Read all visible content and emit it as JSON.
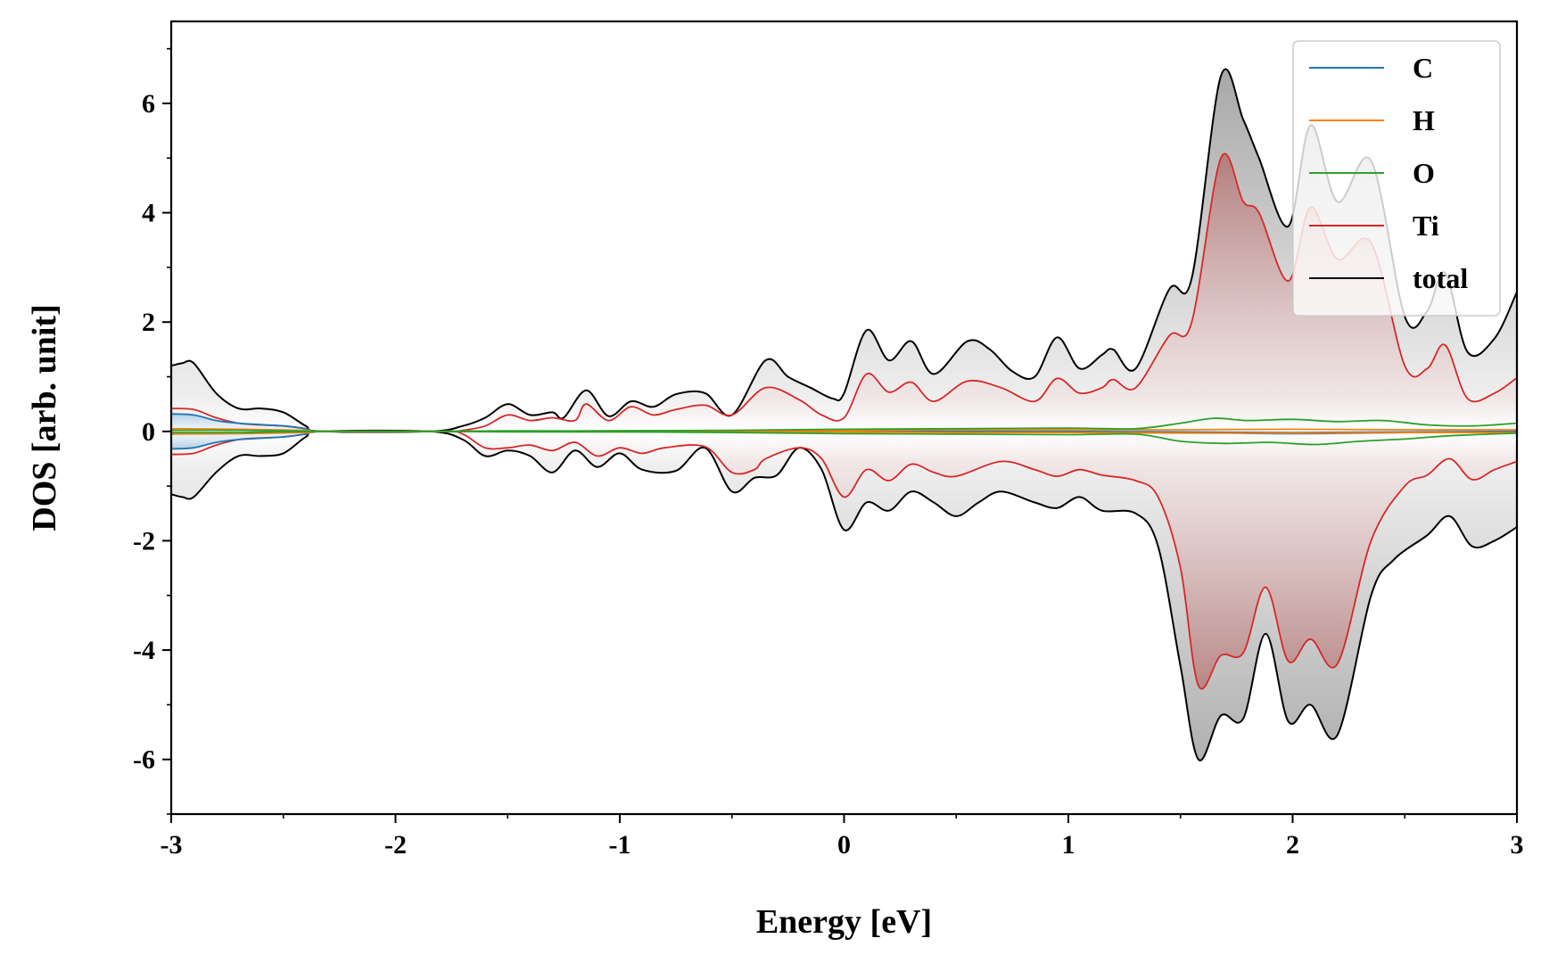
{
  "chart_data": {
    "type": "line",
    "title": "",
    "xlabel": "Energy [eV]",
    "ylabel": "DOS [arb. unit]",
    "xlim": [
      -3,
      3
    ],
    "ylim": [
      -7,
      7.5
    ],
    "xticks": [
      -3,
      -2,
      -1,
      0,
      1,
      2,
      3
    ],
    "xtick_labels": [
      "-3",
      "-2",
      "-1",
      "0",
      "1",
      "2",
      "3"
    ],
    "yticks": [
      -6,
      -4,
      -2,
      0,
      2,
      4,
      6
    ],
    "ytick_labels": [
      "-6",
      "-4",
      "-2",
      "0",
      "2",
      "4",
      "6"
    ],
    "grid": false,
    "legend_position": "top-right",
    "colors": {
      "C": "#1f77b4",
      "H": "#ff7f0e",
      "O": "#2ca02c",
      "Ti": "#d62728",
      "total": "#000000"
    },
    "series": [
      {
        "name": "C",
        "up": [
          [
            -3.0,
            0.32
          ],
          [
            -2.9,
            0.3
          ],
          [
            -2.8,
            0.2
          ],
          [
            -2.7,
            0.15
          ],
          [
            -2.5,
            0.1
          ],
          [
            -2.4,
            0.05
          ],
          [
            -2.33,
            0.0
          ],
          [
            -1.8,
            0.0
          ],
          [
            -1.0,
            0.0
          ],
          [
            0.0,
            0.0
          ],
          [
            1.0,
            -0.01
          ],
          [
            1.5,
            -0.02
          ],
          [
            2.0,
            -0.04
          ],
          [
            2.5,
            -0.02
          ],
          [
            3.0,
            0.0
          ]
        ],
        "down": [
          [
            -3.0,
            -0.32
          ],
          [
            -2.9,
            -0.3
          ],
          [
            -2.8,
            -0.2
          ],
          [
            -2.7,
            -0.15
          ],
          [
            -2.5,
            -0.1
          ],
          [
            -2.4,
            -0.05
          ],
          [
            -2.33,
            0.0
          ],
          [
            -1.8,
            0.0
          ],
          [
            -1.0,
            0.0
          ],
          [
            0.0,
            0.0
          ],
          [
            1.0,
            0.0
          ],
          [
            1.5,
            -0.01
          ],
          [
            2.0,
            -0.02
          ],
          [
            2.5,
            -0.01
          ],
          [
            3.0,
            0.0
          ]
        ]
      },
      {
        "name": "H",
        "up": [
          [
            -3.0,
            0.05
          ],
          [
            -2.7,
            0.04
          ],
          [
            -2.4,
            0.02
          ],
          [
            -2.33,
            0.0
          ],
          [
            -1.8,
            0.0
          ],
          [
            -1.0,
            0.01
          ],
          [
            0.0,
            0.02
          ],
          [
            0.5,
            0.03
          ],
          [
            1.0,
            0.03
          ],
          [
            1.5,
            0.03
          ],
          [
            2.0,
            0.04
          ],
          [
            2.5,
            0.03
          ],
          [
            3.0,
            0.03
          ]
        ],
        "down": [
          [
            -3.0,
            -0.05
          ],
          [
            -2.7,
            -0.04
          ],
          [
            -2.4,
            -0.02
          ],
          [
            -2.33,
            0.0
          ],
          [
            -1.8,
            0.0
          ],
          [
            -1.0,
            -0.01
          ],
          [
            0.0,
            -0.01
          ],
          [
            0.5,
            -0.02
          ],
          [
            1.0,
            -0.02
          ],
          [
            1.5,
            -0.03
          ],
          [
            2.0,
            -0.03
          ],
          [
            2.5,
            -0.02
          ],
          [
            3.0,
            -0.02
          ]
        ]
      },
      {
        "name": "O",
        "up": [
          [
            -3.0,
            0.02
          ],
          [
            -2.7,
            0.02
          ],
          [
            -2.33,
            0.0
          ],
          [
            -1.8,
            0.0
          ],
          [
            -1.5,
            0.01
          ],
          [
            -1.0,
            0.01
          ],
          [
            -0.5,
            0.02
          ],
          [
            0.0,
            0.04
          ],
          [
            0.5,
            0.05
          ],
          [
            1.0,
            0.06
          ],
          [
            1.3,
            0.05
          ],
          [
            1.5,
            0.15
          ],
          [
            1.65,
            0.24
          ],
          [
            1.8,
            0.2
          ],
          [
            2.0,
            0.22
          ],
          [
            2.2,
            0.18
          ],
          [
            2.4,
            0.2
          ],
          [
            2.6,
            0.12
          ],
          [
            2.8,
            0.1
          ],
          [
            3.0,
            0.15
          ]
        ],
        "down": [
          [
            -3.0,
            -0.02
          ],
          [
            -2.7,
            -0.02
          ],
          [
            -2.33,
            0.0
          ],
          [
            -1.8,
            0.0
          ],
          [
            -1.5,
            -0.01
          ],
          [
            -1.0,
            -0.01
          ],
          [
            -0.5,
            -0.02
          ],
          [
            0.0,
            -0.04
          ],
          [
            0.5,
            -0.05
          ],
          [
            1.0,
            -0.06
          ],
          [
            1.3,
            -0.05
          ],
          [
            1.5,
            -0.18
          ],
          [
            1.7,
            -0.22
          ],
          [
            1.9,
            -0.2
          ],
          [
            2.1,
            -0.24
          ],
          [
            2.3,
            -0.18
          ],
          [
            2.5,
            -0.14
          ],
          [
            2.7,
            -0.08
          ],
          [
            3.0,
            -0.03
          ]
        ]
      },
      {
        "name": "Ti",
        "up": [
          [
            -3.0,
            0.42
          ],
          [
            -2.9,
            0.4
          ],
          [
            -2.8,
            0.25
          ],
          [
            -2.7,
            0.15
          ],
          [
            -2.6,
            0.12
          ],
          [
            -2.5,
            0.1
          ],
          [
            -2.4,
            0.05
          ],
          [
            -2.33,
            0.0
          ],
          [
            -1.8,
            0.0
          ],
          [
            -1.7,
            0.02
          ],
          [
            -1.6,
            0.1
          ],
          [
            -1.5,
            0.3
          ],
          [
            -1.4,
            0.2
          ],
          [
            -1.3,
            0.25
          ],
          [
            -1.2,
            0.2
          ],
          [
            -1.15,
            0.5
          ],
          [
            -1.05,
            0.2
          ],
          [
            -0.95,
            0.45
          ],
          [
            -0.85,
            0.3
          ],
          [
            -0.75,
            0.4
          ],
          [
            -0.62,
            0.48
          ],
          [
            -0.5,
            0.3
          ],
          [
            -0.35,
            0.8
          ],
          [
            -0.2,
            0.58
          ],
          [
            -0.1,
            0.3
          ],
          [
            0.0,
            0.25
          ],
          [
            0.1,
            1.05
          ],
          [
            0.2,
            0.72
          ],
          [
            0.3,
            0.9
          ],
          [
            0.4,
            0.55
          ],
          [
            0.55,
            0.92
          ],
          [
            0.7,
            0.8
          ],
          [
            0.85,
            0.55
          ],
          [
            0.95,
            0.97
          ],
          [
            1.05,
            0.7
          ],
          [
            1.15,
            0.8
          ],
          [
            1.2,
            0.95
          ],
          [
            1.3,
            0.8
          ],
          [
            1.45,
            1.75
          ],
          [
            1.55,
            2.0
          ],
          [
            1.68,
            5.0
          ],
          [
            1.78,
            4.2
          ],
          [
            1.85,
            4.0
          ],
          [
            1.98,
            2.75
          ],
          [
            2.08,
            4.1
          ],
          [
            2.2,
            3.15
          ],
          [
            2.35,
            3.45
          ],
          [
            2.5,
            1.2
          ],
          [
            2.6,
            1.15
          ],
          [
            2.68,
            1.58
          ],
          [
            2.78,
            0.6
          ],
          [
            2.9,
            0.7
          ],
          [
            3.0,
            0.98
          ]
        ],
        "down": [
          [
            -3.0,
            -0.42
          ],
          [
            -2.9,
            -0.4
          ],
          [
            -2.8,
            -0.25
          ],
          [
            -2.7,
            -0.15
          ],
          [
            -2.6,
            -0.12
          ],
          [
            -2.5,
            -0.1
          ],
          [
            -2.4,
            -0.05
          ],
          [
            -2.33,
            0.0
          ],
          [
            -1.8,
            0.0
          ],
          [
            -1.7,
            -0.05
          ],
          [
            -1.6,
            -0.3
          ],
          [
            -1.5,
            -0.3
          ],
          [
            -1.4,
            -0.25
          ],
          [
            -1.3,
            -0.35
          ],
          [
            -1.2,
            -0.2
          ],
          [
            -1.1,
            -0.45
          ],
          [
            -1.0,
            -0.3
          ],
          [
            -0.9,
            -0.4
          ],
          [
            -0.8,
            -0.3
          ],
          [
            -0.62,
            -0.28
          ],
          [
            -0.5,
            -0.75
          ],
          [
            -0.4,
            -0.7
          ],
          [
            -0.35,
            -0.5
          ],
          [
            -0.2,
            -0.3
          ],
          [
            -0.1,
            -0.5
          ],
          [
            0.0,
            -1.2
          ],
          [
            0.1,
            -0.7
          ],
          [
            0.2,
            -0.9
          ],
          [
            0.3,
            -0.6
          ],
          [
            0.4,
            -0.75
          ],
          [
            0.5,
            -0.82
          ],
          [
            0.7,
            -0.55
          ],
          [
            0.85,
            -0.7
          ],
          [
            0.95,
            -0.82
          ],
          [
            1.05,
            -0.7
          ],
          [
            1.15,
            -0.8
          ],
          [
            1.3,
            -0.9
          ],
          [
            1.4,
            -1.2
          ],
          [
            1.5,
            -2.5
          ],
          [
            1.58,
            -4.65
          ],
          [
            1.68,
            -4.1
          ],
          [
            1.78,
            -4.05
          ],
          [
            1.88,
            -2.85
          ],
          [
            1.98,
            -4.2
          ],
          [
            2.08,
            -3.8
          ],
          [
            2.2,
            -4.25
          ],
          [
            2.35,
            -2.0
          ],
          [
            2.5,
            -1.0
          ],
          [
            2.6,
            -0.8
          ],
          [
            2.7,
            -0.5
          ],
          [
            2.8,
            -0.88
          ],
          [
            2.9,
            -0.7
          ],
          [
            3.0,
            -0.55
          ]
        ]
      },
      {
        "name": "total",
        "up": [
          [
            -3.0,
            1.2
          ],
          [
            -2.95,
            1.25
          ],
          [
            -2.9,
            1.25
          ],
          [
            -2.8,
            0.7
          ],
          [
            -2.7,
            0.42
          ],
          [
            -2.6,
            0.42
          ],
          [
            -2.5,
            0.35
          ],
          [
            -2.4,
            0.1
          ],
          [
            -2.33,
            0.0
          ],
          [
            -1.85,
            0.0
          ],
          [
            -1.7,
            0.1
          ],
          [
            -1.6,
            0.25
          ],
          [
            -1.5,
            0.5
          ],
          [
            -1.4,
            0.3
          ],
          [
            -1.3,
            0.35
          ],
          [
            -1.25,
            0.25
          ],
          [
            -1.15,
            0.75
          ],
          [
            -1.05,
            0.28
          ],
          [
            -0.95,
            0.55
          ],
          [
            -0.85,
            0.45
          ],
          [
            -0.75,
            0.68
          ],
          [
            -0.62,
            0.7
          ],
          [
            -0.5,
            0.3
          ],
          [
            -0.35,
            1.3
          ],
          [
            -0.25,
            1.0
          ],
          [
            -0.15,
            0.8
          ],
          [
            -0.05,
            0.6
          ],
          [
            0.0,
            0.7
          ],
          [
            0.1,
            1.85
          ],
          [
            0.2,
            1.3
          ],
          [
            0.3,
            1.65
          ],
          [
            0.4,
            1.05
          ],
          [
            0.55,
            1.65
          ],
          [
            0.65,
            1.5
          ],
          [
            0.75,
            1.1
          ],
          [
            0.85,
            1.0
          ],
          [
            0.95,
            1.72
          ],
          [
            1.05,
            1.15
          ],
          [
            1.15,
            1.4
          ],
          [
            1.2,
            1.5
          ],
          [
            1.3,
            1.15
          ],
          [
            1.45,
            2.6
          ],
          [
            1.55,
            2.8
          ],
          [
            1.68,
            6.5
          ],
          [
            1.78,
            5.7
          ],
          [
            1.85,
            5.0
          ],
          [
            1.98,
            3.75
          ],
          [
            2.08,
            5.6
          ],
          [
            2.2,
            4.2
          ],
          [
            2.35,
            4.95
          ],
          [
            2.5,
            2.1
          ],
          [
            2.6,
            2.2
          ],
          [
            2.68,
            2.9
          ],
          [
            2.78,
            1.45
          ],
          [
            2.9,
            1.7
          ],
          [
            3.0,
            2.55
          ]
        ],
        "down": [
          [
            -3.0,
            -1.15
          ],
          [
            -2.95,
            -1.2
          ],
          [
            -2.9,
            -1.2
          ],
          [
            -2.8,
            -0.75
          ],
          [
            -2.7,
            -0.45
          ],
          [
            -2.6,
            -0.45
          ],
          [
            -2.5,
            -0.4
          ],
          [
            -2.4,
            -0.1
          ],
          [
            -2.33,
            0.0
          ],
          [
            -1.85,
            0.0
          ],
          [
            -1.7,
            -0.15
          ],
          [
            -1.6,
            -0.45
          ],
          [
            -1.5,
            -0.35
          ],
          [
            -1.4,
            -0.45
          ],
          [
            -1.3,
            -0.75
          ],
          [
            -1.2,
            -0.35
          ],
          [
            -1.1,
            -0.65
          ],
          [
            -1.0,
            -0.4
          ],
          [
            -0.9,
            -0.7
          ],
          [
            -0.75,
            -0.72
          ],
          [
            -0.62,
            -0.3
          ],
          [
            -0.5,
            -1.1
          ],
          [
            -0.4,
            -0.85
          ],
          [
            -0.3,
            -0.8
          ],
          [
            -0.2,
            -0.3
          ],
          [
            -0.1,
            -0.7
          ],
          [
            0.0,
            -1.8
          ],
          [
            0.1,
            -1.3
          ],
          [
            0.2,
            -1.45
          ],
          [
            0.3,
            -1.1
          ],
          [
            0.4,
            -1.3
          ],
          [
            0.5,
            -1.55
          ],
          [
            0.6,
            -1.3
          ],
          [
            0.7,
            -1.1
          ],
          [
            0.85,
            -1.3
          ],
          [
            0.95,
            -1.4
          ],
          [
            1.05,
            -1.2
          ],
          [
            1.15,
            -1.45
          ],
          [
            1.3,
            -1.5
          ],
          [
            1.4,
            -2.1
          ],
          [
            1.5,
            -4.3
          ],
          [
            1.58,
            -6.0
          ],
          [
            1.68,
            -5.2
          ],
          [
            1.78,
            -5.25
          ],
          [
            1.88,
            -3.7
          ],
          [
            1.98,
            -5.3
          ],
          [
            2.08,
            -5.0
          ],
          [
            2.2,
            -5.55
          ],
          [
            2.35,
            -3.0
          ],
          [
            2.45,
            -2.35
          ],
          [
            2.6,
            -1.9
          ],
          [
            2.7,
            -1.55
          ],
          [
            2.8,
            -2.1
          ],
          [
            2.9,
            -2.0
          ],
          [
            3.0,
            -1.75
          ]
        ]
      }
    ]
  }
}
